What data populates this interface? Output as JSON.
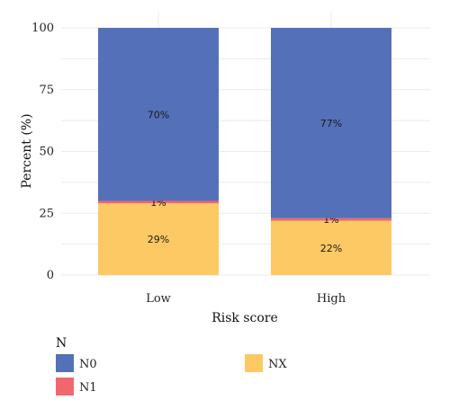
{
  "chart_data": {
    "type": "bar",
    "stacked": true,
    "categories": [
      "Low",
      "High"
    ],
    "series": [
      {
        "name": "NX",
        "values": [
          29,
          22
        ],
        "labels": [
          "29%",
          "22%"
        ],
        "color": "#fdc964"
      },
      {
        "name": "N1",
        "values": [
          1,
          1
        ],
        "labels": [
          "1%",
          "1%"
        ],
        "color": "#f0686e"
      },
      {
        "name": "N0",
        "values": [
          70,
          77
        ],
        "labels": [
          "70%",
          "77%"
        ],
        "color": "#5470b8"
      }
    ],
    "xlabel": "Risk score",
    "ylabel": "Percent (%)",
    "ylim": [
      0,
      100
    ],
    "yticks": [
      0,
      25,
      50,
      75,
      100
    ],
    "grid": true,
    "legend": {
      "title": "N",
      "placement": "bottom-left",
      "entries": [
        "N0",
        "N1",
        "NX"
      ]
    }
  },
  "colors": {
    "grid": "#ebebeb",
    "background": "#ffffff"
  }
}
